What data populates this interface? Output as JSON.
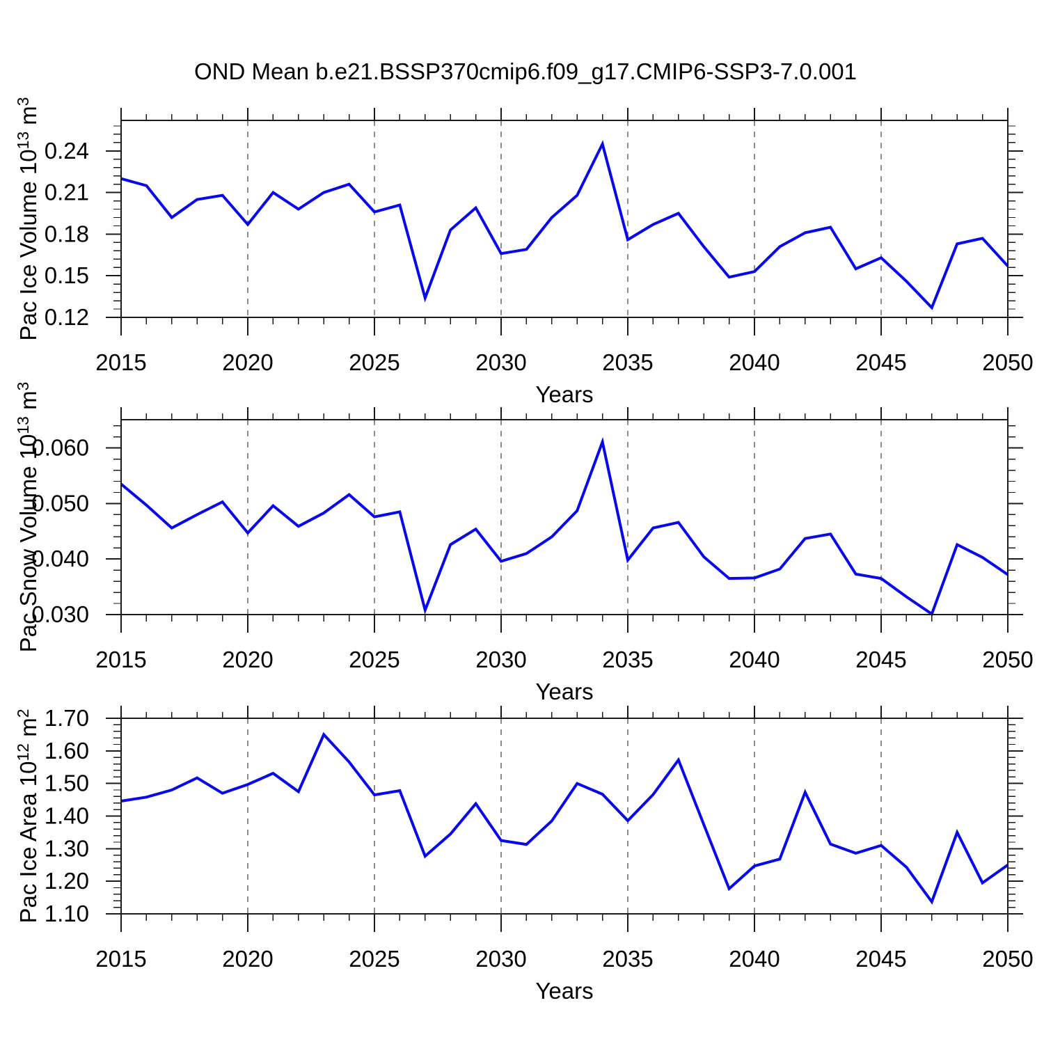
{
  "title": "OND Mean b.e21.BSSP370cmip6.f09_g17.CMIP6-SSP3-7.0.001",
  "xlabel": "Years",
  "colors": {
    "line": "#0808EE",
    "frame": "#1a1a1a",
    "grid": "#8c8c8c",
    "text": "#000000",
    "background": "#ffffff"
  },
  "x_axis": {
    "min": 2015,
    "max": 2050,
    "major_step": 5,
    "minor_step": 1,
    "tick_labels": [
      "2015",
      "2020",
      "2025",
      "2030",
      "2035",
      "2040",
      "2045",
      "2050"
    ],
    "grid_years": [
      2020,
      2025,
      2030,
      2035,
      2040,
      2045
    ]
  },
  "years": [
    2015,
    2016,
    2017,
    2018,
    2019,
    2020,
    2021,
    2022,
    2023,
    2024,
    2025,
    2026,
    2027,
    2028,
    2029,
    2030,
    2031,
    2032,
    2033,
    2034,
    2035,
    2036,
    2037,
    2038,
    2039,
    2040,
    2041,
    2042,
    2043,
    2044,
    2045,
    2046,
    2047,
    2048,
    2049,
    2050
  ],
  "chart_data": [
    {
      "type": "line",
      "id": "pac-ice-volume",
      "title": "",
      "ylabel": "Pac Ice Volume 10¹³ m³",
      "ylabel_parts": [
        [
          "t",
          "Pac Ice Volume 10"
        ],
        [
          "s",
          "13"
        ],
        [
          "t",
          " m"
        ],
        [
          "s",
          "3"
        ]
      ],
      "xlabel": "Years",
      "ylim": [
        0.12,
        0.262
      ],
      "ytick_values": [
        0.12,
        0.15,
        0.18,
        0.21,
        0.24
      ],
      "ytick_labels": [
        "0.12",
        "0.15",
        "0.18",
        "0.21",
        "0.24"
      ],
      "yminor_step": 0.006,
      "grid": "x-dashed",
      "legend": "none",
      "values": [
        0.22,
        0.215,
        0.192,
        0.205,
        0.208,
        0.187,
        0.21,
        0.198,
        0.21,
        0.216,
        0.196,
        0.201,
        0.134,
        0.183,
        0.199,
        0.166,
        0.169,
        0.192,
        0.208,
        0.245,
        0.176,
        0.187,
        0.195,
        0.171,
        0.149,
        0.153,
        0.171,
        0.181,
        0.185,
        0.155,
        0.163,
        0.146,
        0.127,
        0.173,
        0.177,
        0.157
      ]
    },
    {
      "type": "line",
      "id": "pac-snow-volume",
      "title": "",
      "ylabel": "Pac Snow Volume 10¹³ m³",
      "ylabel_parts": [
        [
          "t",
          "Pac Snow Volume 10"
        ],
        [
          "s",
          "13"
        ],
        [
          "t",
          " m"
        ],
        [
          "s",
          "3"
        ]
      ],
      "xlabel": "Years",
      "ylim": [
        0.03,
        0.0651
      ],
      "ytick_values": [
        0.03,
        0.04,
        0.05,
        0.06
      ],
      "ytick_labels": [
        "0.030",
        "0.040",
        "0.050",
        "0.060"
      ],
      "yminor_step": 0.002,
      "grid": "x-dashed",
      "legend": "none",
      "values": [
        0.0535,
        0.0497,
        0.0456,
        0.048,
        0.0503,
        0.0447,
        0.0496,
        0.0459,
        0.0483,
        0.0516,
        0.0476,
        0.0485,
        0.0308,
        0.0426,
        0.0454,
        0.0396,
        0.041,
        0.044,
        0.0487,
        0.0611,
        0.0398,
        0.0456,
        0.0466,
        0.0404,
        0.0365,
        0.0366,
        0.0382,
        0.0437,
        0.0445,
        0.0373,
        0.0365,
        0.0332,
        0.0301,
        0.0426,
        0.0403,
        0.0372
      ]
    },
    {
      "type": "line",
      "id": "pac-ice-area",
      "title": "",
      "ylabel": "Pac Ice Area 10¹² m²",
      "ylabel_parts": [
        [
          "t",
          "Pac Ice Area 10"
        ],
        [
          "s",
          "12"
        ],
        [
          "t",
          " m"
        ],
        [
          "s",
          "2"
        ]
      ],
      "xlabel": "Years",
      "ylim": [
        1.1,
        1.7
      ],
      "ytick_values": [
        1.1,
        1.2,
        1.3,
        1.4,
        1.5,
        1.6,
        1.7
      ],
      "ytick_labels": [
        "1.10",
        "1.20",
        "1.30",
        "1.40",
        "1.50",
        "1.60",
        "1.70"
      ],
      "yminor_step": 0.02,
      "grid": "x-dashed",
      "legend": "none",
      "values": [
        1.446,
        1.458,
        1.48,
        1.517,
        1.47,
        1.497,
        1.531,
        1.475,
        1.65,
        1.566,
        1.465,
        1.478,
        1.277,
        1.345,
        1.438,
        1.325,
        1.313,
        1.385,
        1.5,
        1.467,
        1.386,
        1.466,
        1.572,
        1.374,
        1.177,
        1.247,
        1.268,
        1.473,
        1.314,
        1.286,
        1.31,
        1.243,
        1.137,
        1.35,
        1.195,
        1.25
      ]
    }
  ]
}
